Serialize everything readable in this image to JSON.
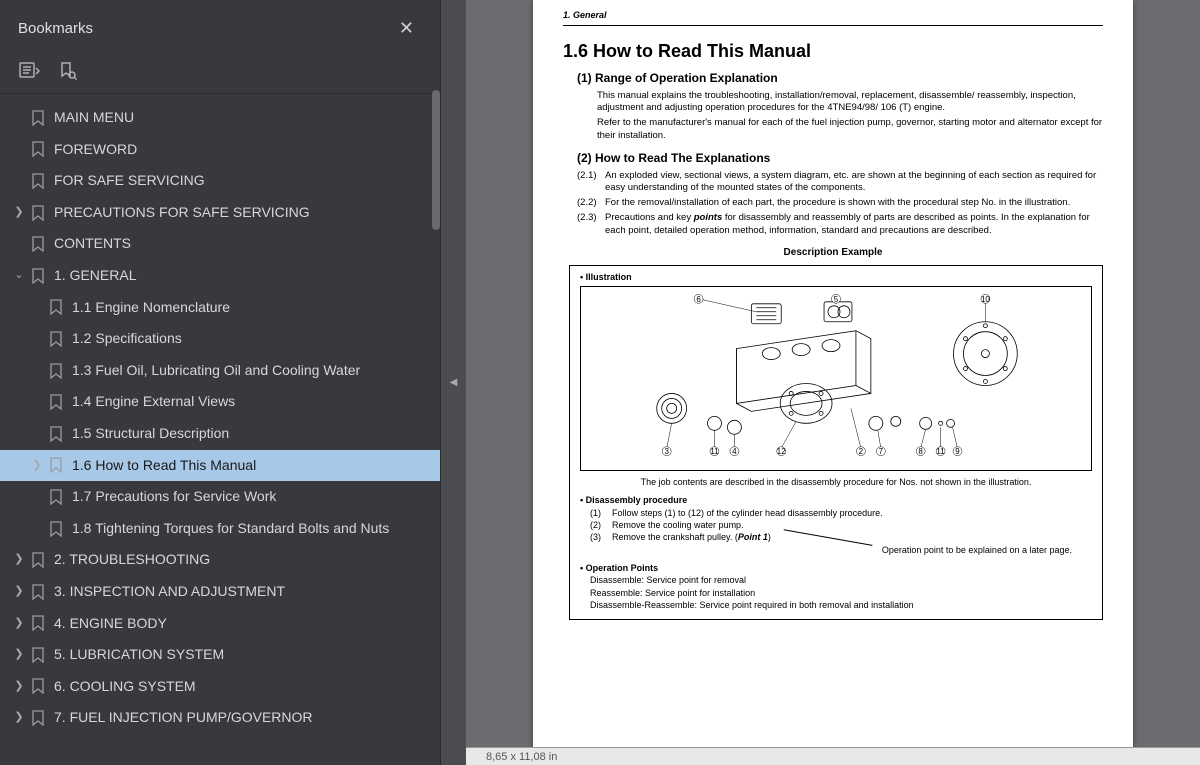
{
  "sidebar": {
    "title": "Bookmarks",
    "items": [
      {
        "label": "MAIN MENU",
        "indent": 0,
        "arrow": ""
      },
      {
        "label": "FOREWORD",
        "indent": 0,
        "arrow": ""
      },
      {
        "label": "FOR SAFE SERVICING",
        "indent": 0,
        "arrow": ""
      },
      {
        "label": "PRECAUTIONS FOR SAFE SERVICING",
        "indent": 0,
        "arrow": ">"
      },
      {
        "label": "CONTENTS",
        "indent": 0,
        "arrow": ""
      },
      {
        "label": "1.  GENERAL",
        "indent": 0,
        "arrow": "v"
      },
      {
        "label": "1.1 Engine Nomenclature",
        "indent": 1,
        "arrow": ""
      },
      {
        "label": "1.2  Specifications",
        "indent": 1,
        "arrow": ""
      },
      {
        "label": "1.3 Fuel  Oil,  Lubricating Oil  and Cooling Water",
        "indent": 1,
        "arrow": ""
      },
      {
        "label": "1.4 Engine External Views",
        "indent": 1,
        "arrow": ""
      },
      {
        "label": "1.5 Structural Description",
        "indent": 1,
        "arrow": ""
      },
      {
        "label": "1.6 How to Read This Manual",
        "indent": 1,
        "arrow": ">",
        "selected": true
      },
      {
        "label": "1.7 Precautions for Service Work",
        "indent": 1,
        "arrow": ""
      },
      {
        "label": "1.8 Tightening Torques for Standard Bolts and Nuts",
        "indent": 1,
        "arrow": ""
      },
      {
        "label": "2.  TROUBLESHOOTING",
        "indent": 0,
        "arrow": ">"
      },
      {
        "label": "3.  INSPECTION AND  ADJUSTMENT",
        "indent": 0,
        "arrow": ">"
      },
      {
        "label": "4. ENGINE BODY",
        "indent": 0,
        "arrow": ">"
      },
      {
        "label": "5. LUBRICATION SYSTEM",
        "indent": 0,
        "arrow": ">"
      },
      {
        "label": "6. COOLING SYSTEM",
        "indent": 0,
        "arrow": ">"
      },
      {
        "label": "7. FUEL  INJECTION PUMP/GOVERNOR",
        "indent": 0,
        "arrow": ">"
      }
    ]
  },
  "doc": {
    "chapter_header": "1.  General",
    "h_main": "1.6  How to Read This Manual",
    "sec1_title": "(1)  Range of Operation Explanation",
    "sec1_p1": "This manual explains the troubleshooting, installation/removal, replacement, disassemble/ reassembly, inspection, adjustment and adjusting operation procedures for the 4TNE94/98/ 106 (T) engine.",
    "sec1_p2": "Refer to the manufacturer's manual for each of the fuel injection pump, governor, starting motor and alternator except for their installation.",
    "sec2_title": "(2)  How to Read The Explanations",
    "sec2_items": [
      {
        "n": "(2.1)",
        "t": "An exploded view, sectional views, a system diagram, etc. are shown at the beginning of each section as required for easy understanding of the mounted states of the components."
      },
      {
        "n": "(2.2)",
        "t": "For the removal/installation of each part, the procedure is shown with the procedural step No. in the illustration."
      },
      {
        "n": "(2.3)",
        "t": "Precautions and key points for disassembly and reassembly of parts are described as points. In the explanation for each point, detailed operation method, information, standard and precautions are described."
      }
    ],
    "desc_example": "Description Example",
    "illus_label": "• Illustration",
    "illus_caption": "The job contents are described in the disassembly procedure for Nos. not shown in the illustration.",
    "disasm_title": "• Disassembly procedure",
    "disasm_items": [
      {
        "n": "(1)",
        "t": "Follow steps (1) to (12) of the cylinder head disassembly procedure."
      },
      {
        "n": "(2)",
        "t": "Remove the cooling water pump."
      },
      {
        "n": "(3)",
        "t": "Remove the crankshaft pulley. (Point 1)"
      }
    ],
    "op_note": "Operation point to be explained on a later page.",
    "op_title": "• Operation Points",
    "op_lines": [
      "Disassemble: Service point for removal",
      "Reassemble: Service point for installation",
      "Disassemble-Reassemble: Service point required in both removal and installation"
    ]
  },
  "status": {
    "dims": "8,65 x 11,08 in"
  }
}
